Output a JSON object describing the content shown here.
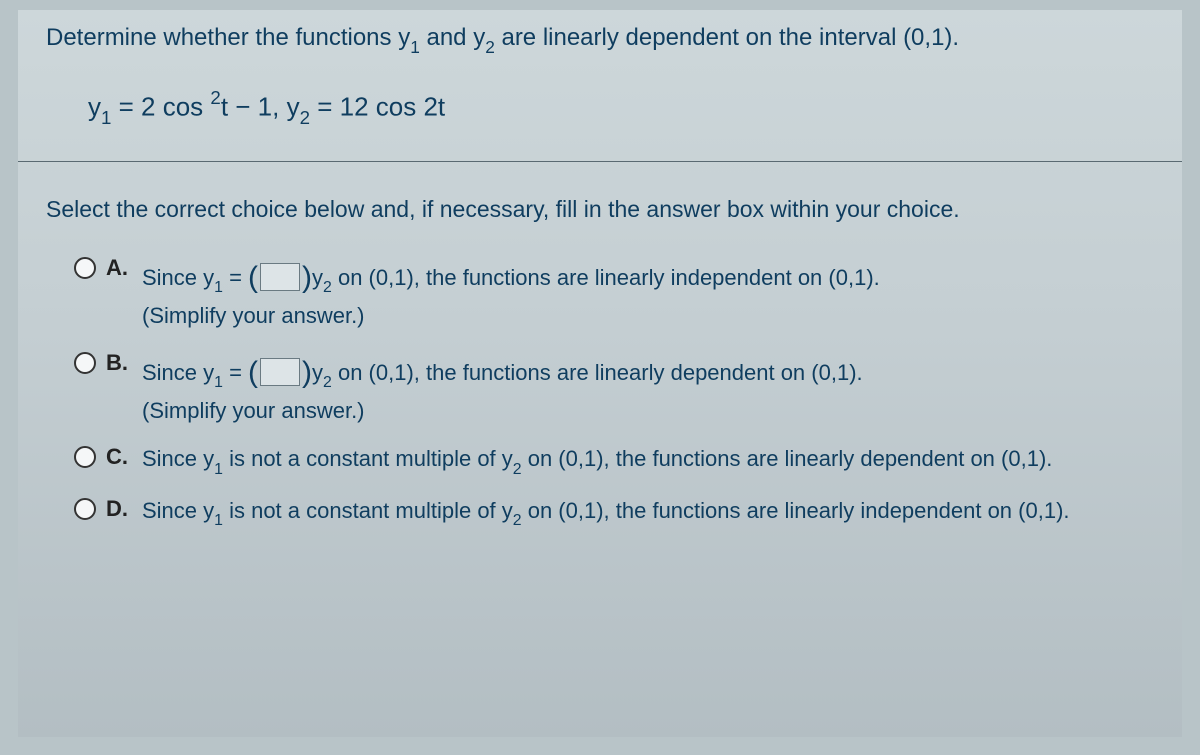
{
  "question": {
    "prefix": "Determine whether the functions ",
    "y1": "y",
    "y1_sub": "1",
    "mid1": " and ",
    "y2": "y",
    "y2_sub": "2",
    "suffix": " are linearly dependent on the interval (0,1)."
  },
  "equation": {
    "y1": "y",
    "y1_sub": "1",
    "eq1_a": " = 2 cos ",
    "sup2": "2",
    "eq1_b": "t − 1, ",
    "y2": "y",
    "y2_sub": "2",
    "eq2": " = 12 cos 2t"
  },
  "instruction": "Select the correct choice below and, if necessary, fill in the answer box within your choice.",
  "choices": {
    "a": {
      "letter": "A.",
      "pre": "Since ",
      "y1": "y",
      "y1_sub": "1",
      "mid": " = ",
      "y2": "y",
      "y2_sub": "2",
      "post": " on (0,1), the functions are linearly independent on (0,1).",
      "simplify": "(Simplify your answer.)"
    },
    "b": {
      "letter": "B.",
      "pre": "Since ",
      "y1": "y",
      "y1_sub": "1",
      "mid": " = ",
      "y2": "y",
      "y2_sub": "2",
      "post": " on (0,1), the functions are linearly dependent on (0,1).",
      "simplify": "(Simplify your answer.)"
    },
    "c": {
      "letter": "C.",
      "pre": "Since ",
      "y1": "y",
      "y1_sub": "1",
      "mid": " is not a constant multiple of ",
      "y2": "y",
      "y2_sub": "2",
      "post": " on (0,1), the functions are linearly dependent on (0,1)."
    },
    "d": {
      "letter": "D.",
      "pre": "Since ",
      "y1": "y",
      "y1_sub": "1",
      "mid": " is not a constant multiple of ",
      "y2": "y",
      "y2_sub": "2",
      "post": " on (0,1), the functions are linearly independent on (0,1)."
    }
  }
}
